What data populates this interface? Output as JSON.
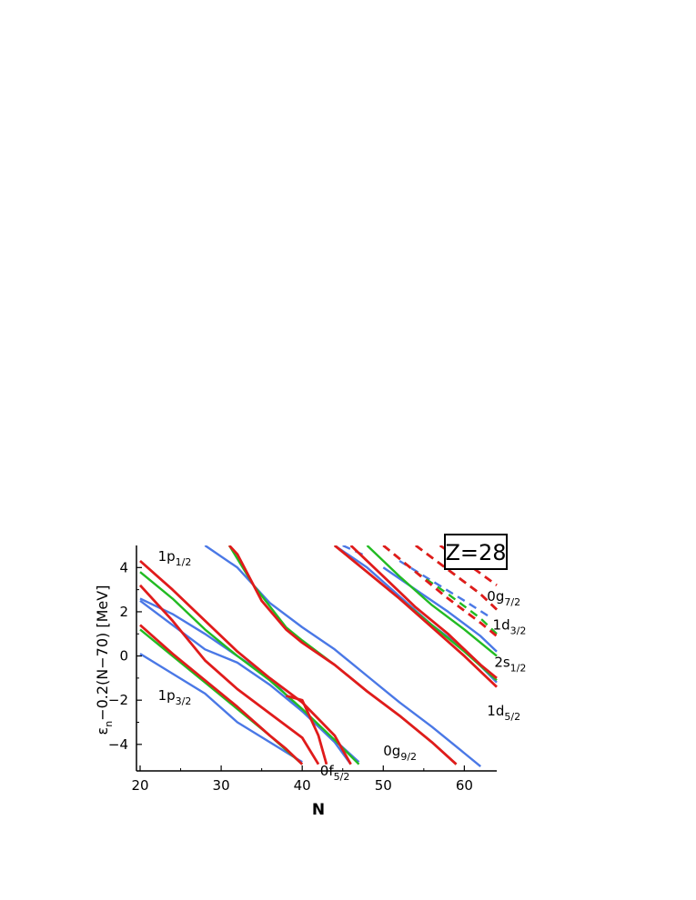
{
  "chart_data": {
    "type": "line",
    "ylabel_main": "ε",
    "ylabel_sub": "n",
    "ylabel_rest": "−0.2(N−70)  [MeV]",
    "xlabel": "N",
    "xlim": [
      20,
      64
    ],
    "ylim": [
      -5.2,
      5.0
    ],
    "xticks": [
      20,
      30,
      40,
      50,
      60
    ],
    "yticks": [
      -4,
      -2,
      0,
      2,
      4
    ],
    "ytick_labels": [
      "−4",
      "−2",
      "0",
      "2",
      "4"
    ],
    "box_label": "Z=28",
    "colors": {
      "blue": "#4a78e6",
      "green": "#22bb22",
      "red": "#e01b1b"
    },
    "level_labels": [
      {
        "main": "1p",
        "sub": "1/2",
        "x": 22.2,
        "y": 4.3
      },
      {
        "main": "1p",
        "sub": "3/2",
        "x": 22.2,
        "y": -2.0
      },
      {
        "main": "0f",
        "sub": "5/2",
        "x": 42.2,
        "y": -5.4
      },
      {
        "main": "0g",
        "sub": "9/2",
        "x": 50.0,
        "y": -4.5
      },
      {
        "main": "0g",
        "sub": "7/2",
        "x": 62.8,
        "y": 2.5
      },
      {
        "main": "1d",
        "sub": "3/2",
        "x": 63.5,
        "y": 1.2
      },
      {
        "main": "2s",
        "sub": "1/2",
        "x": 63.7,
        "y": -0.5
      },
      {
        "main": "1d",
        "sub": "5/2",
        "x": 62.8,
        "y": -2.7
      }
    ],
    "series": [
      {
        "color": "blue",
        "dash": false,
        "points": [
          [
            20,
            2.5
          ],
          [
            28,
            0.3
          ],
          [
            32,
            -0.3
          ],
          [
            36,
            -1.3
          ],
          [
            40,
            -2.5
          ],
          [
            44,
            -3.9
          ],
          [
            46,
            -4.9
          ]
        ]
      },
      {
        "color": "blue",
        "dash": false,
        "points": [
          [
            20,
            2.6
          ],
          [
            24,
            1.9
          ],
          [
            28,
            1.0
          ],
          [
            32,
            0.0
          ],
          [
            36,
            -1.0
          ],
          [
            40,
            -2.5
          ],
          [
            44,
            -3.8
          ],
          [
            47,
            -4.8
          ]
        ]
      },
      {
        "color": "blue",
        "dash": false,
        "points": [
          [
            20,
            0.1
          ],
          [
            24,
            -0.8
          ],
          [
            28,
            -1.7
          ],
          [
            32,
            -3.0
          ],
          [
            36,
            -3.9
          ],
          [
            40,
            -4.8
          ]
        ]
      },
      {
        "color": "blue",
        "dash": false,
        "points": [
          [
            28,
            5.0
          ],
          [
            32,
            4.0
          ],
          [
            36,
            2.4
          ],
          [
            40,
            1.3
          ],
          [
            44,
            0.3
          ],
          [
            48,
            -0.9
          ],
          [
            52,
            -2.1
          ],
          [
            56,
            -3.2
          ],
          [
            60,
            -4.4
          ],
          [
            62,
            -5.0
          ]
        ]
      },
      {
        "color": "blue",
        "dash": false,
        "points": [
          [
            44,
            5.0
          ],
          [
            48,
            4.0
          ],
          [
            52,
            2.7
          ],
          [
            56,
            1.4
          ],
          [
            60,
            0.3
          ],
          [
            64,
            -1.2
          ]
        ]
      },
      {
        "color": "blue",
        "dash": false,
        "points": [
          [
            50,
            4.0
          ],
          [
            54,
            3.0
          ],
          [
            58,
            2.0
          ],
          [
            62,
            0.9
          ],
          [
            64,
            0.2
          ]
        ]
      },
      {
        "color": "blue",
        "dash": true,
        "points": [
          [
            45,
            5.0
          ],
          [
            48,
            4.5
          ]
        ]
      },
      {
        "color": "blue",
        "dash": true,
        "points": [
          [
            52,
            4.3
          ],
          [
            56,
            3.4
          ],
          [
            60,
            2.5
          ],
          [
            63,
            1.8
          ]
        ]
      },
      {
        "color": "blue",
        "dash": true,
        "points": [
          [
            61,
            5.0
          ],
          [
            63,
            4.5
          ]
        ]
      },
      {
        "color": "green",
        "dash": false,
        "points": [
          [
            20,
            3.8
          ],
          [
            24,
            2.6
          ],
          [
            28,
            1.2
          ],
          [
            32,
            0.0
          ],
          [
            36,
            -1.1
          ],
          [
            40,
            -2.4
          ],
          [
            44,
            -3.8
          ],
          [
            47,
            -4.9
          ]
        ]
      },
      {
        "color": "green",
        "dash": false,
        "points": [
          [
            20,
            1.2
          ],
          [
            24,
            0.0
          ],
          [
            28,
            -1.2
          ],
          [
            32,
            -2.4
          ],
          [
            36,
            -3.6
          ],
          [
            40,
            -4.9
          ]
        ]
      },
      {
        "color": "green",
        "dash": false,
        "points": [
          [
            31,
            5.0
          ],
          [
            34,
            3.2
          ],
          [
            38,
            1.3
          ],
          [
            40,
            0.7
          ],
          [
            44,
            -0.4
          ],
          [
            48,
            -1.6
          ],
          [
            52,
            -2.7
          ],
          [
            56,
            -3.9
          ],
          [
            59,
            -4.9
          ]
        ]
      },
      {
        "color": "green",
        "dash": false,
        "points": [
          [
            44,
            5.0
          ],
          [
            48,
            3.8
          ],
          [
            52,
            2.6
          ],
          [
            56,
            1.4
          ],
          [
            60,
            0.2
          ],
          [
            64,
            -1.1
          ]
        ]
      },
      {
        "color": "green",
        "dash": false,
        "points": [
          [
            48,
            5.0
          ],
          [
            52,
            3.6
          ],
          [
            56,
            2.3
          ],
          [
            60,
            1.2
          ],
          [
            64,
            0.0
          ]
        ]
      },
      {
        "color": "green",
        "dash": true,
        "points": [
          [
            50,
            5.0
          ],
          [
            54,
            3.8
          ],
          [
            58,
            2.8
          ],
          [
            62,
            1.7
          ],
          [
            64,
            1.0
          ]
        ]
      },
      {
        "color": "green",
        "dash": true,
        "points": [
          [
            54,
            5.0
          ],
          [
            58,
            3.9
          ],
          [
            62,
            2.8
          ],
          [
            64,
            2.1
          ]
        ]
      },
      {
        "color": "red",
        "dash": false,
        "points": [
          [
            20,
            4.3
          ],
          [
            24,
            3.0
          ],
          [
            28,
            1.6
          ],
          [
            32,
            0.2
          ],
          [
            36,
            -1.0
          ],
          [
            40,
            -2.1
          ],
          [
            44,
            -3.6
          ],
          [
            46,
            -4.9
          ]
        ]
      },
      {
        "color": "red",
        "dash": false,
        "points": [
          [
            20,
            3.2
          ],
          [
            24,
            1.6
          ],
          [
            28,
            -0.2
          ],
          [
            32,
            -1.5
          ],
          [
            36,
            -2.6
          ],
          [
            40,
            -3.7
          ],
          [
            42,
            -4.9
          ]
        ]
      },
      {
        "color": "red",
        "dash": false,
        "points": [
          [
            20,
            1.4
          ],
          [
            24,
            0.1
          ],
          [
            28,
            -1.1
          ],
          [
            32,
            -2.3
          ],
          [
            36,
            -3.6
          ],
          [
            38,
            -4.2
          ],
          [
            40,
            -4.9
          ]
        ]
      },
      {
        "color": "red",
        "dash": false,
        "points": [
          [
            31,
            5.0
          ],
          [
            32,
            4.6
          ],
          [
            35,
            2.5
          ],
          [
            38,
            1.2
          ],
          [
            40,
            0.6
          ],
          [
            44,
            -0.4
          ],
          [
            48,
            -1.6
          ],
          [
            52,
            -2.7
          ],
          [
            56,
            -3.9
          ],
          [
            59,
            -4.9
          ]
        ]
      },
      {
        "color": "red",
        "dash": false,
        "points": [
          [
            38,
            -1.8
          ],
          [
            40,
            -2.0
          ],
          [
            42,
            -3.6
          ],
          [
            43,
            -4.9
          ]
        ]
      },
      {
        "color": "red",
        "dash": false,
        "points": [
          [
            44,
            5.0
          ],
          [
            48,
            3.8
          ],
          [
            52,
            2.6
          ],
          [
            56,
            1.3
          ],
          [
            60,
            0.0
          ],
          [
            64,
            -1.4
          ]
        ]
      },
      {
        "color": "red",
        "dash": false,
        "points": [
          [
            46,
            5.0
          ],
          [
            50,
            3.6
          ],
          [
            54,
            2.2
          ],
          [
            58,
            1.0
          ],
          [
            62,
            -0.4
          ],
          [
            64,
            -1.0
          ]
        ]
      },
      {
        "color": "red",
        "dash": true,
        "points": [
          [
            50,
            5.0
          ],
          [
            54,
            3.8
          ],
          [
            58,
            2.6
          ],
          [
            62,
            1.5
          ],
          [
            64,
            0.9
          ]
        ]
      },
      {
        "color": "red",
        "dash": true,
        "points": [
          [
            54,
            5.0
          ],
          [
            58,
            3.9
          ],
          [
            62,
            2.8
          ],
          [
            64,
            2.1
          ]
        ]
      },
      {
        "color": "red",
        "dash": true,
        "points": [
          [
            57,
            5.0
          ],
          [
            61,
            4.0
          ],
          [
            64,
            3.2
          ]
        ]
      }
    ]
  }
}
